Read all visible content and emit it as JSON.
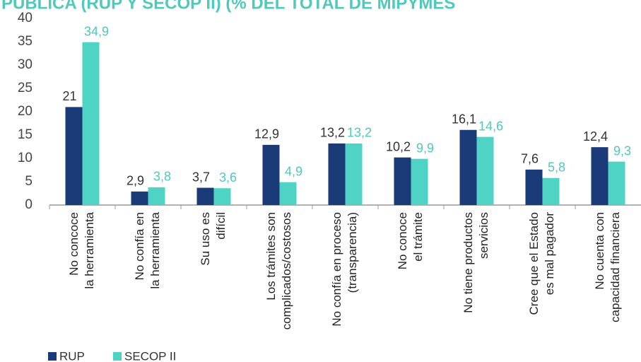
{
  "chart_data": {
    "type": "bar",
    "title": "PÚBLICA (RUP Y SECOP II) (% DEL TOTAL DE MIPYMES",
    "categories": [
      [
        "No concoce",
        "la herramienta"
      ],
      [
        "No confía en",
        "la herramienta"
      ],
      [
        "Su uso es",
        "difícil"
      ],
      [
        "Los trámites son",
        "complicados/costosos"
      ],
      [
        "No confía en proceso",
        "(transparencia)"
      ],
      [
        "No conoce",
        "el trámite"
      ],
      [
        "No tiene productos",
        "servicios"
      ],
      [
        "Cree que el Estado",
        "es mal pagador"
      ],
      [
        "No cuenta con",
        "capacidad financiera"
      ]
    ],
    "series": [
      {
        "name": "RUP",
        "color": "#1b3a78",
        "label_color": "#333333",
        "values": [
          21,
          2.9,
          3.7,
          12.9,
          13.2,
          10.2,
          16.1,
          7.6,
          12.4
        ],
        "value_labels": [
          "21",
          "2,9",
          "3,7",
          "12,9",
          "13,2",
          "10,2",
          "16,1",
          "7,6",
          "12,4"
        ]
      },
      {
        "name": "SECOP II",
        "color": "#4fd3c4",
        "label_color": "#4fc9bb",
        "values": [
          34.9,
          3.8,
          3.6,
          4.9,
          13.2,
          9.9,
          14.6,
          5.8,
          9.3
        ],
        "value_labels": [
          "34,9",
          "3,8",
          "3,6",
          "4,9",
          "13,2",
          "9,9",
          "14,6",
          "5,8",
          "9,3"
        ]
      }
    ],
    "ylim": [
      0,
      40
    ],
    "yticks": [
      0,
      5,
      10,
      15,
      20,
      25,
      30,
      35,
      40
    ],
    "grid": false
  }
}
